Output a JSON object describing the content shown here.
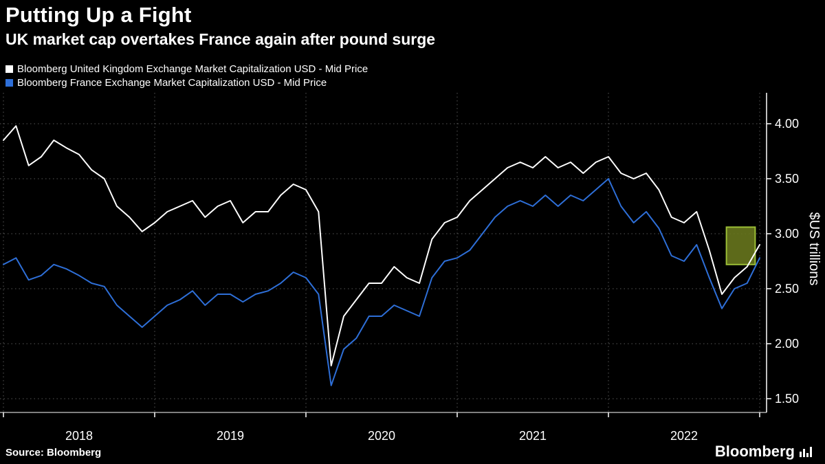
{
  "chart_data": {
    "type": "line",
    "title": "Putting Up a Fight",
    "subtitle": "UK market cap overtakes France again after pound surge",
    "ylabel": "$US trillions",
    "x_unit": "decimal_year",
    "x_start": 2018.0,
    "x_step": 0.083333,
    "x_range": [
      2018,
      2023
    ],
    "y_range": [
      1.5,
      4.0
    ],
    "yticks": [
      1.5,
      2.0,
      2.5,
      3.0,
      3.5,
      4.0
    ],
    "ytick_labels": [
      "1.50",
      "2.00",
      "2.50",
      "3.00",
      "3.50",
      "4.00"
    ],
    "xtick_years": [
      2018,
      2019,
      2020,
      2021,
      2022
    ],
    "grid": "dotted",
    "legend_position": "top-left",
    "series": [
      {
        "name": "Bloomberg United Kingdom Exchange Market Capitalization USD - Mid Price",
        "color": "#ffffff",
        "values": [
          3.85,
          3.98,
          3.62,
          3.7,
          3.85,
          3.78,
          3.72,
          3.58,
          3.5,
          3.25,
          3.15,
          3.02,
          3.1,
          3.2,
          3.25,
          3.3,
          3.15,
          3.25,
          3.3,
          3.1,
          3.2,
          3.2,
          3.35,
          3.45,
          3.4,
          3.2,
          1.8,
          2.25,
          2.4,
          2.55,
          2.55,
          2.7,
          2.6,
          2.55,
          2.95,
          3.1,
          3.15,
          3.3,
          3.4,
          3.5,
          3.6,
          3.65,
          3.6,
          3.7,
          3.6,
          3.65,
          3.55,
          3.65,
          3.7,
          3.55,
          3.5,
          3.55,
          3.4,
          3.15,
          3.1,
          3.2,
          2.85,
          2.45,
          2.6,
          2.7,
          2.9
        ]
      },
      {
        "name": "Bloomberg France Exchange Market Capitalization USD - Mid Price",
        "color": "#2e6fd8",
        "values": [
          2.72,
          2.78,
          2.58,
          2.62,
          2.72,
          2.68,
          2.62,
          2.55,
          2.52,
          2.35,
          2.25,
          2.15,
          2.25,
          2.35,
          2.4,
          2.48,
          2.35,
          2.45,
          2.45,
          2.38,
          2.45,
          2.48,
          2.55,
          2.65,
          2.6,
          2.45,
          1.62,
          1.95,
          2.05,
          2.25,
          2.25,
          2.35,
          2.3,
          2.25,
          2.6,
          2.75,
          2.78,
          2.85,
          3.0,
          3.15,
          3.25,
          3.3,
          3.25,
          3.35,
          3.25,
          3.35,
          3.3,
          3.4,
          3.5,
          3.25,
          3.1,
          3.2,
          3.05,
          2.8,
          2.75,
          2.9,
          2.6,
          2.32,
          2.5,
          2.55,
          2.78
        ]
      }
    ],
    "highlight_box": {
      "x0": 2022.78,
      "x1": 2022.97,
      "y0": 2.72,
      "y1": 3.06,
      "fill": "#67761d",
      "stroke": "#9cbf36"
    }
  },
  "colors": {
    "background": "#000000",
    "grid": "#585858",
    "axis": "#ffffff",
    "text": "#ffffff"
  },
  "footer": {
    "source": "Source: Bloomberg",
    "logo_text": "Bloomberg",
    "logo_icon": "bar-chart-icon"
  }
}
